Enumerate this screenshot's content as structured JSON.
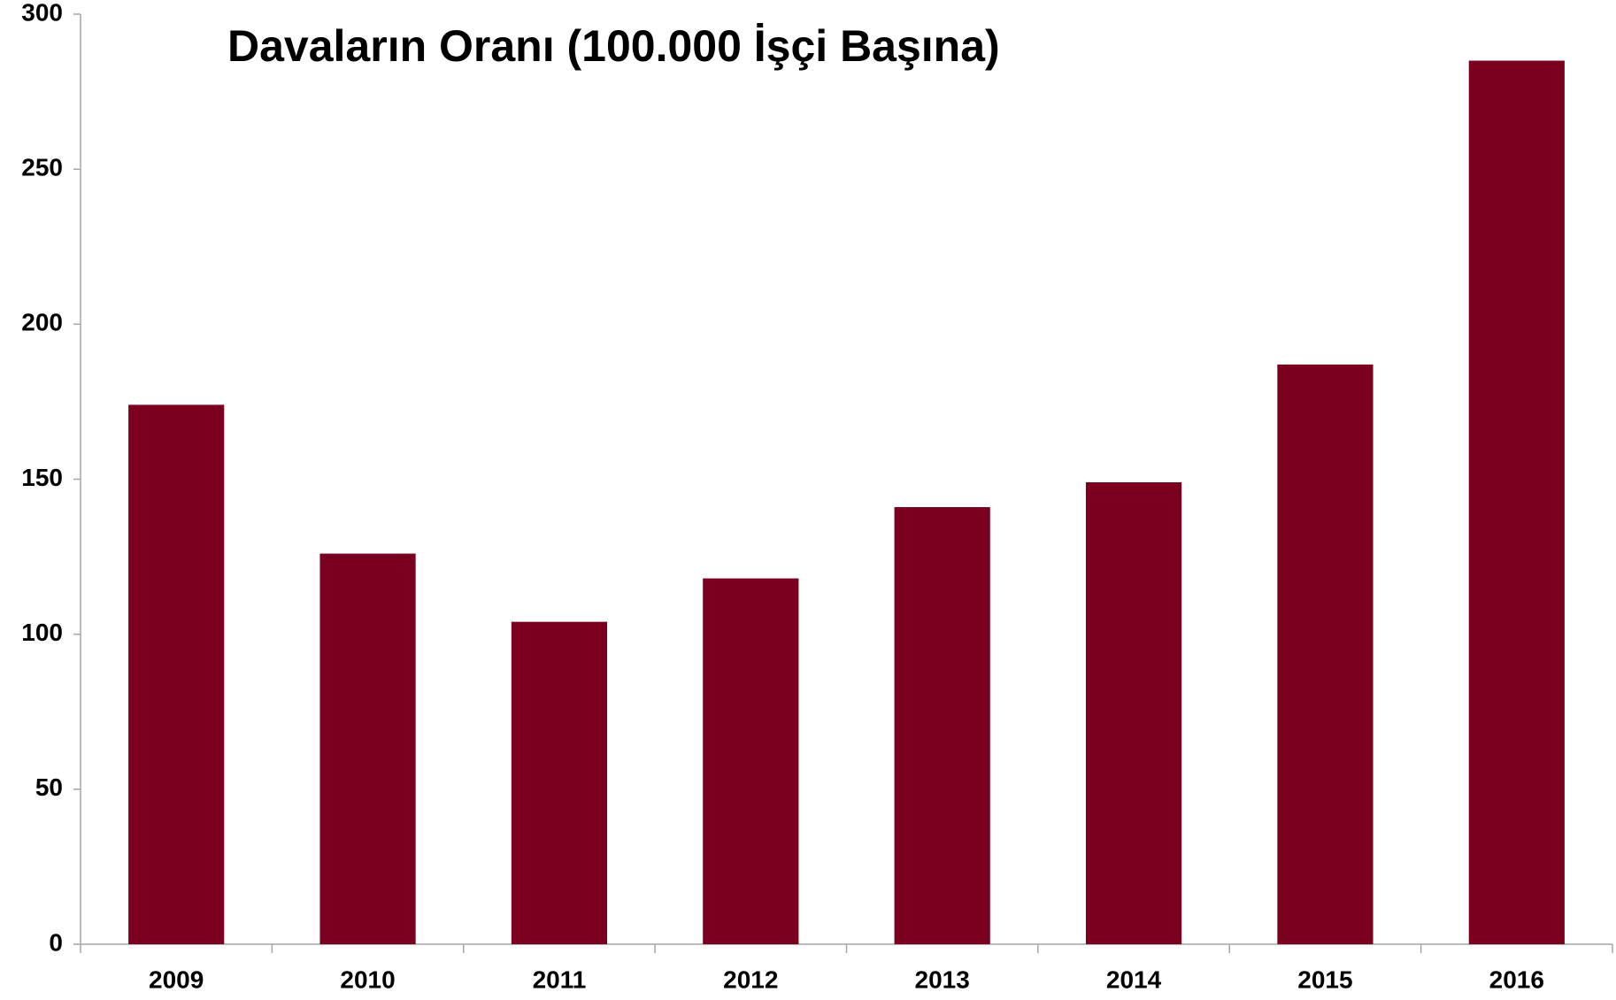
{
  "chart_data": {
    "type": "bar",
    "title": "Davaların Oranı (100.000 İşçi Başına)",
    "categories": [
      "2009",
      "2010",
      "2011",
      "2012",
      "2013",
      "2014",
      "2015",
      "2016"
    ],
    "values": [
      174,
      126,
      104,
      118,
      141,
      149,
      187,
      285
    ],
    "color": "#7b0020",
    "ylim": [
      0,
      300
    ],
    "yticks": [
      0,
      50,
      100,
      150,
      200,
      250,
      300
    ],
    "grid": false
  }
}
